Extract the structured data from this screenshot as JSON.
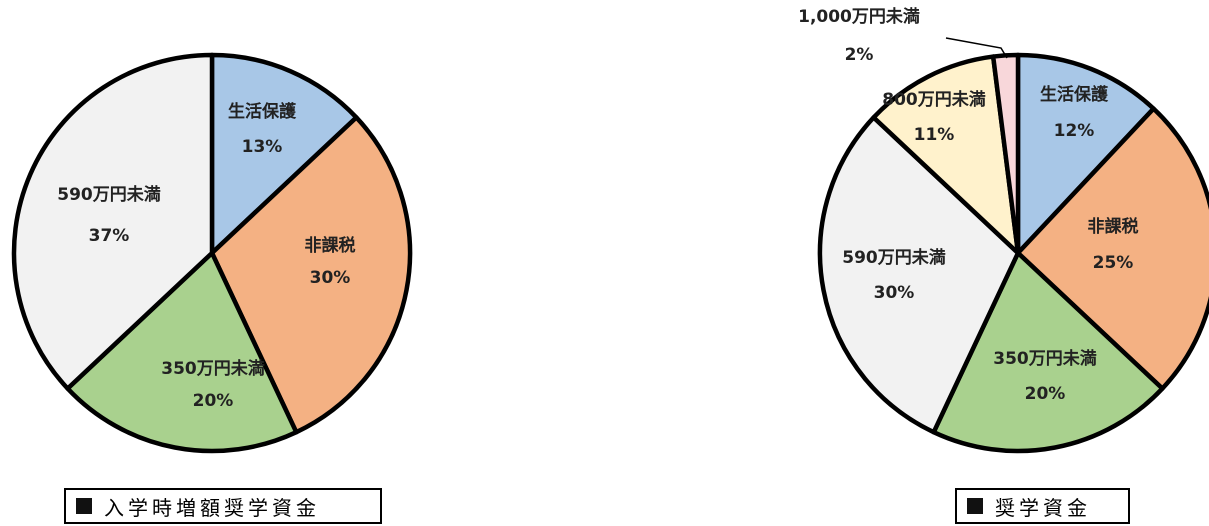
{
  "chart_data": [
    {
      "type": "pie",
      "title": "入学時増額奨学資金",
      "colors": {
        "生活保護": "#a8c7e7",
        "非課税": "#f4b183",
        "350万円未満": "#a9d18e",
        "590万円未満": "#f2f2f2"
      },
      "slices": [
        {
          "label": "生活保護",
          "value_label": "13%",
          "value": 13
        },
        {
          "label": "非課税",
          "value_label": "30%",
          "value": 30
        },
        {
          "label": "350万円未満",
          "value_label": "20%",
          "value": 20
        },
        {
          "label": "590万円未満",
          "value_label": "37%",
          "value": 37
        }
      ]
    },
    {
      "type": "pie",
      "title": "奨学資金",
      "colors": {
        "生活保護": "#a8c7e7",
        "非課税": "#f4b183",
        "350万円未満": "#a9d18e",
        "590万円未満": "#f2f2f2",
        "800万円未満": "#fff2cc",
        "1,000万円未満": "#f8d7da"
      },
      "slices": [
        {
          "label": "生活保護",
          "value_label": "12%",
          "value": 12
        },
        {
          "label": "非課税",
          "value_label": "25%",
          "value": 25
        },
        {
          "label": "350万円未満",
          "value_label": "20%",
          "value": 20
        },
        {
          "label": "590万円未満",
          "value_label": "30%",
          "value": 30
        },
        {
          "label": "800万円未満",
          "value_label": "11%",
          "value": 11
        },
        {
          "label": "1,000万円未満",
          "value_label": "2%",
          "value": 2
        }
      ]
    }
  ]
}
